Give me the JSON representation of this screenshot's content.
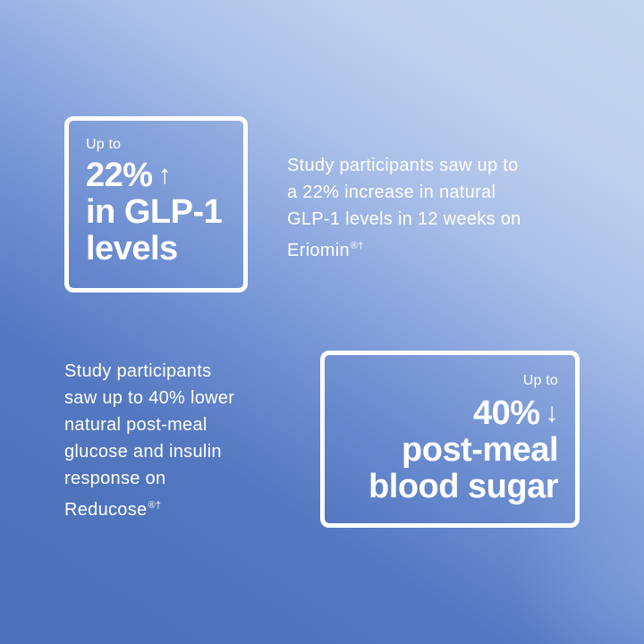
{
  "colors": {
    "background_dark": "#4e72ba",
    "background_light": "#c3d4ee",
    "text": "#ffffff",
    "border": "#ffffff"
  },
  "stat_glp1": {
    "kicker": "Up to",
    "headline_lines": [
      "22%",
      "in GLP-1",
      "levels"
    ],
    "arrow_icon": "arrow-up-icon",
    "arrow_glyph": "↑"
  },
  "description_glp1": {
    "lines": [
      "Study participants saw up to",
      "a 22% increase in natural",
      "GLP-1 levels in 12 weeks on",
      "Eriomin"
    ],
    "trademark_marks": "®†"
  },
  "description_glucose": {
    "lines": [
      "Study participants",
      "saw up to 40% lower",
      "natural post-meal",
      "glucose and insulin",
      "response on",
      "Reducose"
    ],
    "trademark_marks": "®†"
  },
  "stat_blood_sugar": {
    "kicker": "Up to",
    "headline_lines": [
      "40%",
      "post-meal",
      "blood sugar"
    ],
    "arrow_icon": "arrow-down-icon",
    "arrow_glyph": "↓"
  }
}
